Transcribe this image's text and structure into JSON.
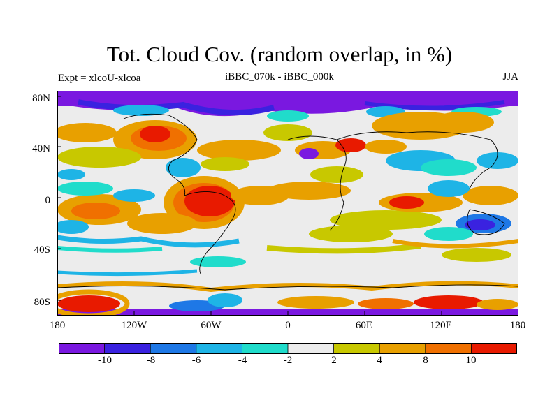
{
  "figure": {
    "title": "Tot. Cloud Cov. (random overlap, in %)",
    "left_subtitle": "Expt = xlcoU-xlcoa",
    "center_subtitle": "iBBC_070k - iBBC_000k",
    "right_subtitle": "JJA"
  },
  "axes": {
    "y_ticks": [
      "80N",
      "40N",
      "0",
      "40S",
      "80S"
    ],
    "x_ticks": [
      "180",
      "120W",
      "60W",
      "0",
      "60E",
      "120E",
      "180"
    ],
    "lon_range": [
      -180,
      180
    ],
    "lat_range": [
      -90,
      90
    ]
  },
  "colorbar": {
    "labels": [
      "-10",
      "-8",
      "-6",
      "-4",
      "-2",
      "2",
      "4",
      "8",
      "10"
    ],
    "colors": [
      "#7a18e0",
      "#3a22e0",
      "#1e78e6",
      "#1eb4e6",
      "#20dccb",
      "#ececec",
      "#c8c800",
      "#e8a000",
      "#f07000",
      "#e81a00"
    ]
  }
}
